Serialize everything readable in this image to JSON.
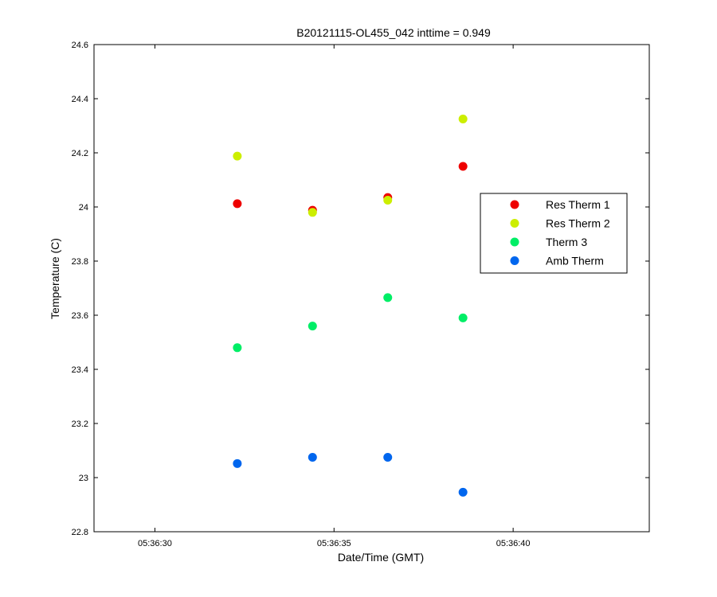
{
  "chart_data": {
    "type": "scatter",
    "title": "B20121115-OL455_042 inttime = 0.949",
    "xlabel": "Date/Time (GMT)",
    "ylabel": "Temperature (C)",
    "x_ticks": [
      "05:36:30",
      "05:36:35",
      "05:36:40"
    ],
    "x_tick_seconds": [
      30,
      35,
      40
    ],
    "xlim_seconds": [
      28.3,
      43.8
    ],
    "ylim": [
      22.8,
      24.6
    ],
    "y_ticks": [
      "22.8",
      "23",
      "23.2",
      "23.4",
      "23.6",
      "23.8",
      "24",
      "24.2",
      "24.4",
      "24.6"
    ],
    "grid": false,
    "legend_position": "right",
    "x_seconds": [
      32.3,
      34.4,
      36.5,
      38.6
    ],
    "series": [
      {
        "name": "Res Therm 1",
        "color": "#ee0000",
        "values": [
          24.012,
          23.988,
          24.035,
          24.15
        ]
      },
      {
        "name": "Res Therm 2",
        "color": "#ccee00",
        "values": [
          24.188,
          23.98,
          24.025,
          24.325
        ]
      },
      {
        "name": "Therm 3",
        "color": "#00ee66",
        "values": [
          23.48,
          23.56,
          23.665,
          23.59
        ]
      },
      {
        "name": "Amb Therm",
        "color": "#0066ee",
        "values": [
          23.052,
          23.075,
          23.075,
          22.946
        ]
      }
    ]
  }
}
